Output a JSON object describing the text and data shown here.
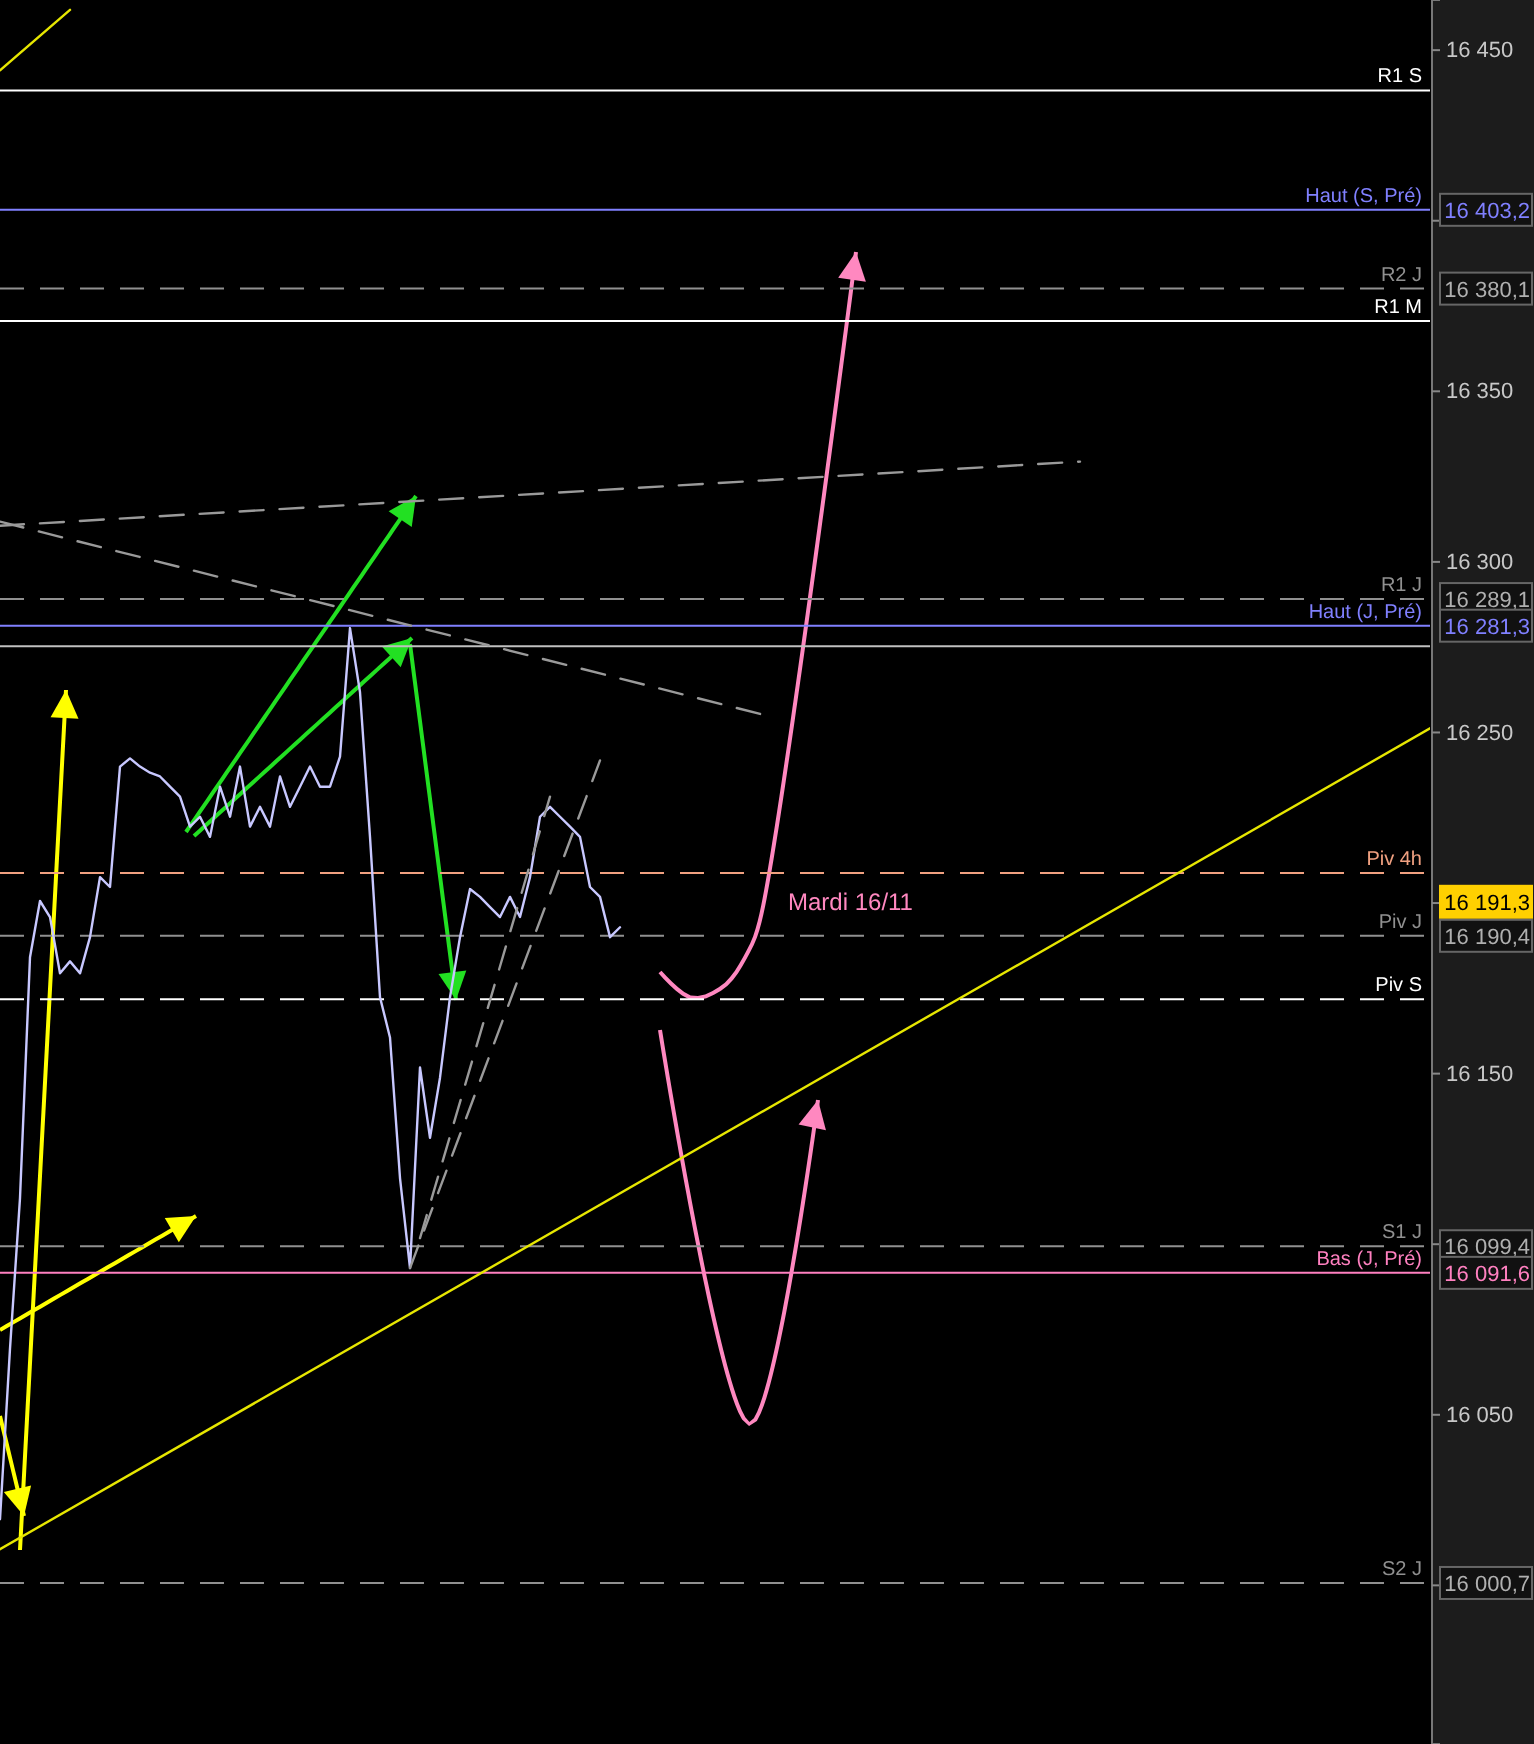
{
  "chart_data": {
    "type": "line",
    "categories": [
      null,
      null,
      null,
      null,
      null,
      null,
      null,
      null,
      null,
      null,
      null,
      null,
      null,
      null,
      null,
      null,
      null,
      null,
      null,
      null,
      null,
      null,
      null,
      null,
      null,
      null,
      null,
      null,
      null,
      null,
      null,
      null,
      null,
      null,
      null,
      null,
      null,
      null,
      null,
      null,
      null,
      null,
      null,
      null,
      null,
      null,
      null,
      null,
      null,
      null,
      null,
      null,
      null,
      null,
      null,
      null,
      null,
      null,
      null,
      null,
      null,
      null,
      null,
      null,
      null,
      null,
      null,
      null,
      null,
      null,
      null,
      null,
      null,
      null,
      null,
      null,
      null,
      null,
      null,
      null,
      null,
      null,
      null,
      null,
      null,
      null,
      null,
      null,
      null,
      null,
      null,
      null,
      null,
      null,
      null,
      null,
      null,
      null,
      null,
      null,
      null,
      null,
      null,
      null,
      null,
      null,
      null,
      null,
      null,
      null,
      null,
      null,
      null,
      null,
      null,
      null,
      null,
      null,
      null,
      null,
      null,
      null,
      null,
      null,
      null,
      null,
      null,
      null,
      null,
      null,
      null,
      null,
      null,
      null,
      null,
      null,
      null,
      null,
      null,
      null,
      null,
      null,
      null,
      null
    ],
    "series": [
      {
        "color": "#c8c8ff",
        "line_style": "solid",
        "values": [
          16019.4,
          16069.4,
          16113.5,
          16184.1,
          16200.6,
          16195.9,
          16179.4,
          16182.9,
          16179.4,
          16190,
          16207.6,
          16204.7,
          16240,
          16242.4,
          16240,
          16238.2,
          16237.1,
          16234.1,
          16231.2,
          16222.4,
          16225.3,
          16219.4,
          16234.1,
          16225.3,
          16240,
          16222.4,
          16228.2,
          16222.4,
          16237.1,
          16228.2,
          16234.1,
          16240,
          16234.1,
          16234.1,
          16242.9,
          16280.6,
          16261.8,
          16219.4,
          16172.4,
          16160.6,
          16119.4,
          16093,
          16151.8,
          16131.2,
          16148.8,
          16172.4,
          16190,
          16204.1,
          16201.8,
          16198.8,
          16195.9,
          16201.8,
          16195.9,
          16207.6,
          16225.3,
          16228.2,
          16225.3,
          16222.4,
          16219.4,
          16204.7,
          16201.8,
          16190,
          16192.9,
          null,
          null,
          null,
          null,
          null,
          null,
          null,
          null,
          null,
          null,
          null,
          null,
          null,
          null,
          null,
          null,
          null,
          null,
          null,
          null,
          null,
          null,
          null,
          null,
          null,
          null,
          null,
          null,
          null,
          null,
          null,
          null,
          null,
          null,
          null,
          null,
          null,
          null,
          null,
          null,
          null,
          null,
          null,
          null,
          null,
          null,
          null,
          null,
          null,
          null,
          null,
          null,
          null,
          null,
          null,
          null,
          null,
          null,
          null,
          null,
          null,
          null,
          null,
          null,
          null,
          null,
          null,
          null,
          null,
          null,
          null,
          null,
          null,
          null,
          null,
          null,
          null,
          null,
          null,
          null,
          null
        ]
      },
      {
        "color": "#e6e600",
        "line_style": "solid",
        "values": [
          16010.6,
          null,
          null,
          null,
          null,
          null,
          null,
          null,
          null,
          null,
          null,
          null,
          null,
          null,
          null,
          null,
          null,
          null,
          null,
          null,
          null,
          null,
          null,
          null,
          null,
          null,
          null,
          null,
          null,
          null,
          null,
          null,
          null,
          null,
          null,
          null,
          null,
          null,
          null,
          null,
          null,
          null,
          null,
          null,
          null,
          null,
          null,
          null,
          null,
          null,
          null,
          null,
          null,
          null,
          null,
          null,
          null,
          null,
          null,
          null,
          null,
          null,
          null,
          null,
          null,
          null,
          null,
          null,
          null,
          null,
          null,
          null,
          null,
          null,
          null,
          null,
          null,
          null,
          null,
          null,
          null,
          null,
          null,
          null,
          null,
          null,
          null,
          null,
          null,
          null,
          null,
          null,
          null,
          null,
          null,
          null,
          null,
          null,
          null,
          null,
          null,
          null,
          null,
          null,
          null,
          null,
          null,
          null,
          null,
          null,
          null,
          null,
          null,
          null,
          null,
          null,
          null,
          null,
          null,
          null,
          null,
          null,
          null,
          null,
          null,
          null,
          null,
          null,
          null,
          null,
          null,
          null,
          null,
          null,
          null,
          null,
          null,
          null,
          null,
          null,
          null,
          null,
          null,
          16251.2
        ]
      },
      {
        "color": "#e6e600",
        "line_style": "solid",
        "values": [
          16444.1,
          null,
          null,
          null,
          null,
          null,
          null,
          16461.8,
          null,
          null,
          null,
          null,
          null,
          null,
          null,
          null,
          null,
          null,
          null,
          null,
          null,
          null,
          null,
          null,
          null,
          null,
          null,
          null,
          null,
          null,
          null,
          null,
          null,
          null,
          null,
          null,
          null,
          null,
          null,
          null,
          null,
          null,
          null,
          null,
          null,
          null,
          null,
          null,
          null,
          null,
          null,
          null,
          null,
          null,
          null,
          null,
          null,
          null,
          null,
          null,
          null,
          null,
          null,
          null,
          null,
          null,
          null,
          null,
          null,
          null,
          null,
          null,
          null,
          null,
          null,
          null,
          null,
          null,
          null,
          null,
          null,
          null,
          null,
          null,
          null,
          null,
          null,
          null,
          null,
          null,
          null,
          null,
          null,
          null,
          null,
          null,
          null,
          null,
          null,
          null,
          null,
          null,
          null,
          null,
          null,
          null,
          null,
          null,
          null,
          null,
          null,
          null,
          null,
          null,
          null,
          null,
          null,
          null,
          null,
          null,
          null,
          null,
          null,
          null,
          null,
          null,
          null,
          null,
          null,
          null,
          null,
          null,
          null,
          null,
          null,
          null,
          null,
          null,
          null,
          null,
          null,
          null,
          null,
          null
        ]
      },
      {
        "color": "#9a9a9a",
        "line_style": "dashed",
        "values": [
          16311.8,
          null,
          null,
          null,
          null,
          null,
          null,
          null,
          null,
          null,
          null,
          null,
          null,
          null,
          null,
          null,
          null,
          null,
          null,
          null,
          null,
          null,
          null,
          null,
          null,
          null,
          null,
          null,
          null,
          null,
          null,
          null,
          null,
          null,
          null,
          null,
          null,
          null,
          null,
          null,
          null,
          null,
          null,
          null,
          null,
          null,
          null,
          null,
          null,
          null,
          null,
          null,
          null,
          null,
          null,
          null,
          null,
          null,
          null,
          null,
          null,
          null,
          null,
          null,
          null,
          null,
          null,
          null,
          null,
          null,
          null,
          null,
          null,
          null,
          null,
          null,
          null,
          16254.7,
          null,
          null,
          null,
          null,
          null,
          null,
          null,
          null,
          null,
          null,
          null,
          null,
          null,
          null,
          null,
          null,
          null,
          null,
          null,
          null,
          null,
          null,
          null,
          null,
          null,
          null,
          null,
          null,
          null,
          null,
          null,
          null,
          null,
          null,
          null,
          null,
          null,
          null,
          null,
          null,
          null,
          null,
          null,
          null,
          null,
          null,
          null,
          null,
          null,
          null,
          null,
          null,
          null,
          null,
          null,
          null,
          null,
          null,
          null,
          null,
          null,
          null,
          null,
          null,
          null,
          null
        ]
      },
      {
        "color": "#9a9a9a",
        "line_style": "dashed",
        "values": [
          16310.6,
          null,
          null,
          null,
          null,
          null,
          null,
          null,
          null,
          null,
          null,
          null,
          null,
          null,
          null,
          null,
          null,
          null,
          null,
          null,
          null,
          null,
          null,
          null,
          null,
          null,
          null,
          null,
          null,
          null,
          null,
          null,
          null,
          null,
          null,
          null,
          null,
          null,
          null,
          null,
          null,
          null,
          null,
          null,
          null,
          null,
          null,
          null,
          null,
          null,
          null,
          null,
          null,
          null,
          null,
          null,
          null,
          null,
          null,
          null,
          null,
          null,
          null,
          null,
          null,
          null,
          null,
          null,
          null,
          null,
          null,
          null,
          null,
          null,
          null,
          null,
          null,
          null,
          null,
          null,
          null,
          null,
          null,
          null,
          null,
          null,
          null,
          null,
          null,
          null,
          null,
          null,
          null,
          null,
          null,
          null,
          null,
          null,
          null,
          null,
          null,
          null,
          null,
          null,
          null,
          null,
          null,
          null,
          16329.4,
          null,
          null,
          null,
          null,
          null,
          null,
          null,
          null,
          null,
          null,
          null,
          null,
          null,
          null,
          null,
          null,
          null,
          null,
          null,
          null,
          null,
          null,
          null,
          null,
          null,
          null,
          null,
          null,
          null,
          null,
          null,
          null,
          null,
          null,
          null
        ]
      },
      {
        "color": "#9a9a9a",
        "line_style": "dashed",
        "values": [
          null,
          null,
          null,
          null,
          null,
          null,
          null,
          null,
          null,
          null,
          null,
          null,
          null,
          null,
          null,
          null,
          null,
          null,
          null,
          null,
          null,
          null,
          null,
          null,
          null,
          null,
          null,
          null,
          null,
          null,
          null,
          null,
          null,
          null,
          null,
          null,
          null,
          null,
          null,
          null,
          null,
          16093,
          null,
          null,
          null,
          null,
          null,
          null,
          null,
          null,
          null,
          null,
          null,
          null,
          null,
          null,
          null,
          null,
          null,
          null,
          16241.8,
          null,
          null,
          null,
          null,
          null,
          null,
          null,
          null,
          null,
          null,
          null,
          null,
          null,
          null,
          null,
          null,
          null,
          null,
          null,
          null,
          null,
          null,
          null,
          null,
          null,
          null,
          null,
          null,
          null,
          null,
          null,
          null,
          null,
          null,
          null,
          null,
          null,
          null,
          null,
          null,
          null,
          null,
          null,
          null,
          null,
          null,
          null,
          null,
          null,
          null,
          null,
          null,
          null,
          null,
          null,
          null,
          null,
          null,
          null,
          null,
          null,
          null,
          null,
          null,
          null,
          null,
          null,
          null,
          null,
          null,
          null,
          null,
          null,
          null,
          null,
          null,
          null,
          null,
          null,
          null,
          null,
          null,
          null
        ]
      },
      {
        "color": "#9a9a9a",
        "line_style": "dashed",
        "values": [
          null,
          null,
          null,
          null,
          null,
          null,
          null,
          null,
          null,
          null,
          null,
          null,
          null,
          null,
          null,
          null,
          null,
          null,
          null,
          null,
          null,
          null,
          null,
          null,
          null,
          null,
          null,
          null,
          null,
          null,
          null,
          null,
          null,
          null,
          null,
          null,
          null,
          null,
          null,
          null,
          null,
          null,
          16101.8,
          null,
          null,
          null,
          null,
          null,
          null,
          null,
          null,
          null,
          null,
          null,
          null,
          16231.2,
          null,
          null,
          null,
          null,
          null,
          null,
          null,
          null,
          null,
          null,
          null,
          null,
          null,
          null,
          null,
          null,
          null,
          null,
          null,
          null,
          null,
          null,
          null,
          null,
          null,
          null,
          null,
          null,
          null,
          null,
          null,
          null,
          null,
          null,
          null,
          null,
          null,
          null,
          null,
          null,
          null,
          null,
          null,
          null,
          null,
          null,
          null,
          null,
          null,
          null,
          null,
          null,
          null,
          null,
          null,
          null,
          null,
          null,
          null,
          null,
          null,
          null,
          null,
          null,
          null,
          null,
          null,
          null,
          null,
          null,
          null,
          null,
          null,
          null,
          null,
          null,
          null,
          null,
          null,
          null,
          null,
          null,
          null,
          null,
          null,
          null,
          null,
          null
        ]
      }
    ],
    "ylim": [
      15953.5,
      16464.7
    ],
    "yticks": [
      {
        "value": 16000,
        "label": null
      },
      {
        "value": 16050,
        "label": "16 050"
      },
      {
        "value": 16100,
        "label": null
      },
      {
        "value": 16150,
        "label": "16 150"
      },
      {
        "value": 16200,
        "label": null
      },
      {
        "value": 16250,
        "label": "16 250"
      },
      {
        "value": 16300,
        "label": "16 300"
      },
      {
        "value": 16350,
        "label": "16 350"
      },
      {
        "value": 16400,
        "label": null
      },
      {
        "value": 16450,
        "label": "16 450"
      }
    ],
    "tick_labels": "y",
    "grid": false,
    "marker": "none",
    "ref_lines": [
      {
        "axis": "y",
        "value": 16438.2,
        "label": "R1 S",
        "color": "#ffffff",
        "line_style": "solid"
      },
      {
        "axis": "y",
        "value": 16403.2,
        "label": "Haut (S, Pré)",
        "color": "#8080ff",
        "line_style": "solid"
      },
      {
        "axis": "y",
        "value": 16380.1,
        "label": "R2 J",
        "color": "#909090",
        "line_style": "dashed"
      },
      {
        "axis": "y",
        "value": 16370.6,
        "label": "R1 M",
        "color": "#ffffff",
        "line_style": "solid"
      },
      {
        "axis": "y",
        "value": 16289.1,
        "label": "R1 J",
        "color": "#909090",
        "line_style": "dashed"
      },
      {
        "axis": "y",
        "value": 16281.3,
        "label": "Haut (J, Pré)",
        "color": "#8080ff",
        "line_style": "solid"
      },
      {
        "axis": "y",
        "value": 16275.3,
        "color": "#c0c0c0",
        "line_style": "solid"
      },
      {
        "axis": "y",
        "value": 16208.8,
        "label": "Piv 4h",
        "color": "#f0a080",
        "line_style": "dashed"
      },
      {
        "axis": "y",
        "value": 16190.4,
        "label": "Piv J",
        "color": "#909090",
        "line_style": "dashed"
      },
      {
        "axis": "y",
        "value": 16171.8,
        "label": "Piv S",
        "color": "#ffffff",
        "line_style": "dashed"
      },
      {
        "axis": "y",
        "value": 16099.4,
        "label": "S1 J",
        "color": "#909090",
        "line_style": "dashed"
      },
      {
        "axis": "y",
        "value": 16091.6,
        "label": "Bas (J, Pré)",
        "color": "#ff80c0",
        "line_style": "solid"
      },
      {
        "axis": "y",
        "value": 16000.7,
        "label": "S2 J",
        "color": "#909090",
        "line_style": "dashed"
      }
    ],
    "annotations": [
      "Mardi 16/11",
      "16 403,2",
      "16 380,1",
      "16 289,1",
      "16 281,3",
      "16 191,3",
      "16 190,4",
      "16 099,4",
      "16 091,6",
      "16 000,7"
    ]
  }
}
